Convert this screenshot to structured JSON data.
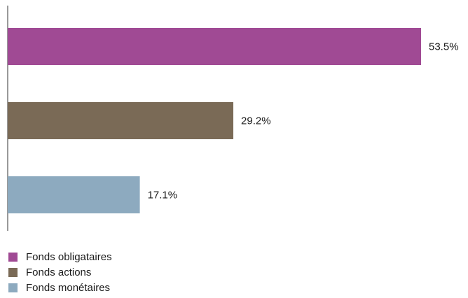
{
  "chart_data": {
    "type": "bar",
    "orientation": "horizontal",
    "categories": [
      "Fonds obligataires",
      "Fonds actions",
      "Fonds monétaires"
    ],
    "values": [
      53.5,
      29.2,
      17.1
    ],
    "value_labels": [
      "53.5%",
      "29.2%",
      "17.1%"
    ],
    "unit": "%",
    "colors": [
      "#a04a94",
      "#7a6a56",
      "#8daabf"
    ],
    "xlim": [
      0,
      53.5
    ],
    "grid": false,
    "legend_position": "bottom-left"
  },
  "legend": {
    "items": [
      {
        "label": "Fonds obligataires",
        "color": "#a04a94"
      },
      {
        "label": "Fonds actions",
        "color": "#7a6a56"
      },
      {
        "label": "Fonds monétaires",
        "color": "#8daabf"
      }
    ]
  }
}
